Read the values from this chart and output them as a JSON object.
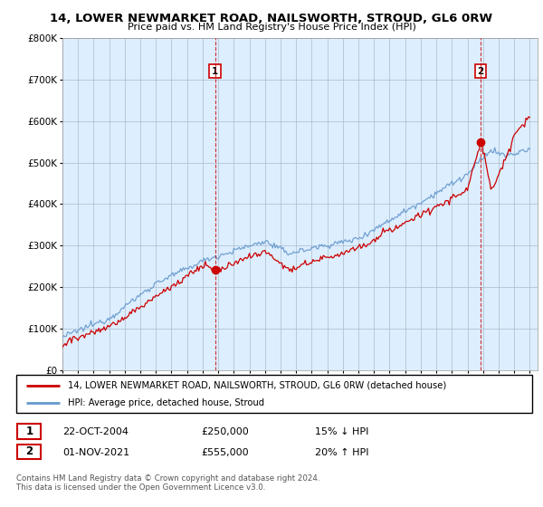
{
  "title_line1": "14, LOWER NEWMARKET ROAD, NAILSWORTH, STROUD, GL6 0RW",
  "title_line2": "Price paid vs. HM Land Registry's House Price Index (HPI)",
  "legend_red": "14, LOWER NEWMARKET ROAD, NAILSWORTH, STROUD, GL6 0RW (detached house)",
  "legend_blue": "HPI: Average price, detached house, Stroud",
  "sale1_date": "22-OCT-2004",
  "sale1_price": "£250,000",
  "sale1_hpi": "15% ↓ HPI",
  "sale2_date": "01-NOV-2021",
  "sale2_price": "£555,000",
  "sale2_hpi": "20% ↑ HPI",
  "footnote": "Contains HM Land Registry data © Crown copyright and database right 2024.\nThis data is licensed under the Open Government Licence v3.0.",
  "sale1_year": 2004.8,
  "sale1_value": 250000,
  "sale2_year": 2021.84,
  "sale2_value": 555000,
  "ylim": [
    0,
    800000
  ],
  "xlim_start": 1995.0,
  "xlim_end": 2025.5,
  "red_color": "#cc0000",
  "blue_color": "#6699cc",
  "chart_bg": "#ddeeff",
  "dashed_color": "#cc0000",
  "background_color": "#ffffff",
  "grid_color": "#aabbcc"
}
